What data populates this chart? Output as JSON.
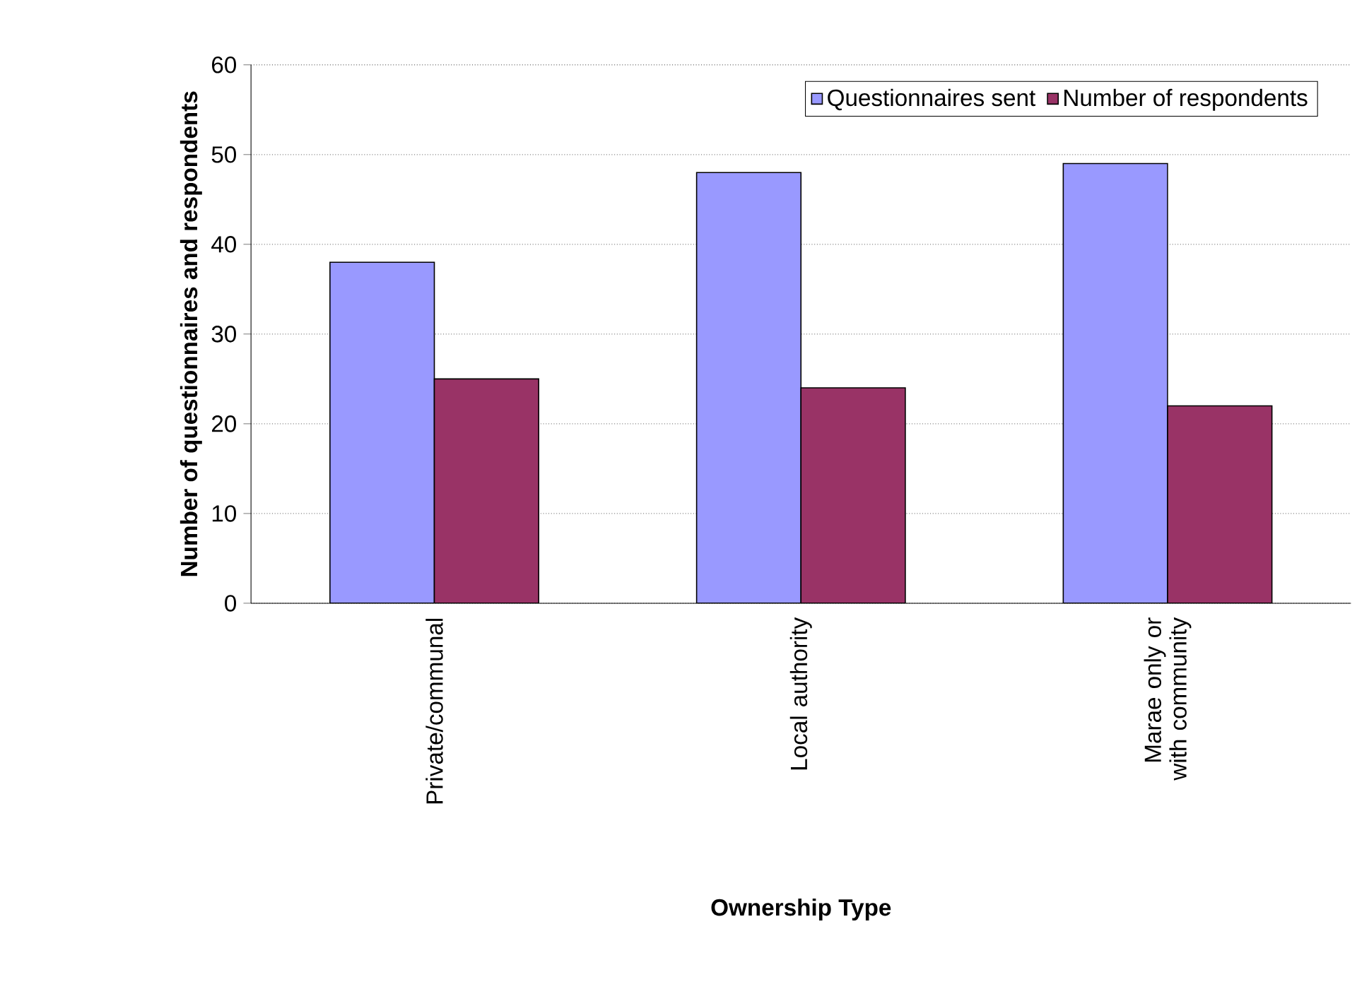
{
  "chart_data": {
    "type": "bar",
    "xlabel": "Ownership Type",
    "ylabel": "Number of questionnaires and respondents",
    "categories": [
      "Private/communal",
      "Local authority",
      "Marae only or with community"
    ],
    "series": [
      {
        "name": "Questionnaires sent",
        "color": "#9999ff",
        "values": [
          38,
          48,
          49
        ]
      },
      {
        "name": "Number of respondents",
        "color": "#993366",
        "values": [
          25,
          24,
          22
        ]
      }
    ],
    "ylim": [
      0,
      60
    ],
    "yticks": [
      0,
      10,
      20,
      30,
      40,
      50,
      60
    ],
    "grid": "y",
    "legend": "top right"
  }
}
